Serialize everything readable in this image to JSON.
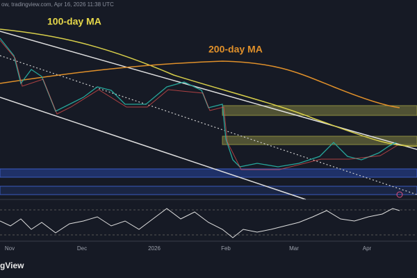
{
  "header": {
    "source": "ow, tradingview.com, Apr 16, 2026 11:38 UTC"
  },
  "annotations": {
    "ma100": "100-day MA",
    "ma200": "200-day MA"
  },
  "x_axis": {
    "labels": [
      "Nov",
      "Dec",
      "2026",
      "Feb",
      "Mar",
      "Apr"
    ]
  },
  "footer": {
    "brand": "gView"
  }
}
